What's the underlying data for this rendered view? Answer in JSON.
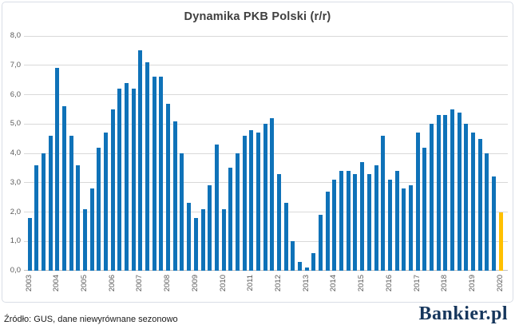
{
  "title": "Dynamika PKB Polski (r/r)",
  "footer": {
    "source": "Źródło: GUS, dane niewyrównane sezonowo"
  },
  "branding": {
    "logo_text": "Bankier.pl"
  },
  "colors": {
    "bar": "#0f72b8",
    "highlight": "#ffc000",
    "grid": "#d9d9d9",
    "axis": "#bfbfbf",
    "tick_text": "#595959",
    "title_text": "#404040"
  },
  "chart_data": {
    "type": "bar",
    "title": "Dynamika PKB Polski (r/r)",
    "xlabel": "",
    "ylabel": "",
    "ylim": [
      0,
      8
    ],
    "ytick_step": 1,
    "ytick_labels": [
      "0,0",
      "1,0",
      "2,0",
      "3,0",
      "4,0",
      "5,0",
      "6,0",
      "7,0",
      "8,0"
    ],
    "grid": true,
    "legend": false,
    "x_year_labels": [
      "2003",
      "2004",
      "2005",
      "2006",
      "2007",
      "2008",
      "2009",
      "2010",
      "2011",
      "2012",
      "2013",
      "2014",
      "2015",
      "2016",
      "2017",
      "2018",
      "2019",
      "2020"
    ],
    "categories": [
      "2003 Q1",
      "2003 Q2",
      "2003 Q3",
      "2003 Q4",
      "2004 Q1",
      "2004 Q2",
      "2004 Q3",
      "2004 Q4",
      "2005 Q1",
      "2005 Q2",
      "2005 Q3",
      "2005 Q4",
      "2006 Q1",
      "2006 Q2",
      "2006 Q3",
      "2006 Q4",
      "2007 Q1",
      "2007 Q2",
      "2007 Q3",
      "2007 Q4",
      "2008 Q1",
      "2008 Q2",
      "2008 Q3",
      "2008 Q4",
      "2009 Q1",
      "2009 Q2",
      "2009 Q3",
      "2009 Q4",
      "2010 Q1",
      "2010 Q2",
      "2010 Q3",
      "2010 Q4",
      "2011 Q1",
      "2011 Q2",
      "2011 Q3",
      "2011 Q4",
      "2012 Q1",
      "2012 Q2",
      "2012 Q3",
      "2012 Q4",
      "2013 Q1",
      "2013 Q2",
      "2013 Q3",
      "2013 Q4",
      "2014 Q1",
      "2014 Q2",
      "2014 Q3",
      "2014 Q4",
      "2015 Q1",
      "2015 Q2",
      "2015 Q3",
      "2015 Q4",
      "2016 Q1",
      "2016 Q2",
      "2016 Q3",
      "2016 Q4",
      "2017 Q1",
      "2017 Q2",
      "2017 Q3",
      "2017 Q4",
      "2018 Q1",
      "2018 Q2",
      "2018 Q3",
      "2018 Q4",
      "2019 Q1",
      "2019 Q2",
      "2019 Q3",
      "2019 Q4",
      "2020 Q1"
    ],
    "values": [
      1.8,
      3.6,
      4.0,
      4.6,
      6.9,
      5.6,
      4.6,
      3.6,
      2.1,
      2.8,
      4.2,
      4.7,
      5.5,
      6.2,
      6.4,
      6.2,
      7.5,
      7.1,
      6.6,
      6.6,
      5.7,
      5.1,
      4.0,
      2.3,
      1.8,
      2.1,
      2.9,
      4.3,
      2.1,
      3.5,
      4.0,
      4.6,
      4.8,
      4.7,
      5.0,
      5.2,
      3.3,
      2.3,
      1.0,
      0.3,
      0.1,
      0.6,
      1.9,
      2.7,
      3.1,
      3.4,
      3.4,
      3.3,
      3.7,
      3.3,
      3.6,
      4.6,
      3.1,
      3.4,
      2.8,
      2.9,
      4.7,
      4.2,
      5.0,
      5.3,
      5.3,
      5.5,
      5.4,
      5.0,
      4.7,
      4.5,
      4.0,
      3.2,
      2.0
    ],
    "highlight_index": 68,
    "bar_color": "#0f72b8",
    "highlight_color": "#ffc000"
  }
}
